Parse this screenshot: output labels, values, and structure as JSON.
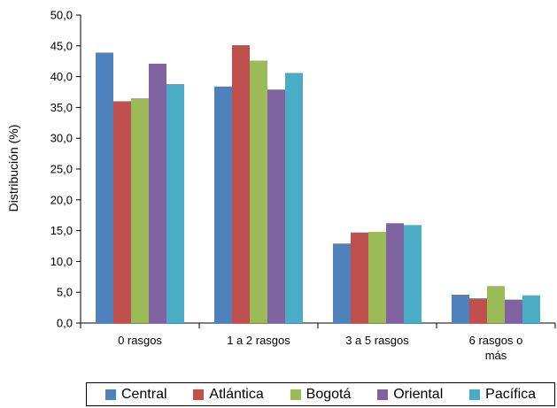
{
  "chart_data": {
    "type": "bar",
    "ylabel": "Distribución (%)",
    "xlabel": "",
    "ylim": [
      0,
      50
    ],
    "yticks": [
      "0,0",
      "5,0",
      "10,0",
      "15,0",
      "20,0",
      "25,0",
      "30,0",
      "35,0",
      "40,0",
      "45,0",
      "50,0"
    ],
    "categories": [
      {
        "lines": [
          "0 rasgos"
        ]
      },
      {
        "lines": [
          "1 a 2 rasgos"
        ]
      },
      {
        "lines": [
          "3 a 5 rasgos"
        ]
      },
      {
        "lines": [
          "6 rasgos o",
          "más"
        ]
      }
    ],
    "series": [
      {
        "name": "Central",
        "color": "#4f81bd",
        "values": [
          43.9,
          38.4,
          12.9,
          4.6
        ]
      },
      {
        "name": "Atlántica",
        "color": "#c0504d",
        "values": [
          36.0,
          45.1,
          14.7,
          4.0
        ]
      },
      {
        "name": "Bogotá",
        "color": "#9bbb59",
        "values": [
          36.5,
          42.6,
          14.8,
          6.0
        ]
      },
      {
        "name": "Oriental",
        "color": "#8064a2",
        "values": [
          42.1,
          37.9,
          16.2,
          3.8
        ]
      },
      {
        "name": "Pacífica",
        "color": "#4bacc6",
        "values": [
          38.8,
          40.6,
          15.9,
          4.5
        ]
      }
    ],
    "legend_position": "bottom",
    "grid": false
  }
}
